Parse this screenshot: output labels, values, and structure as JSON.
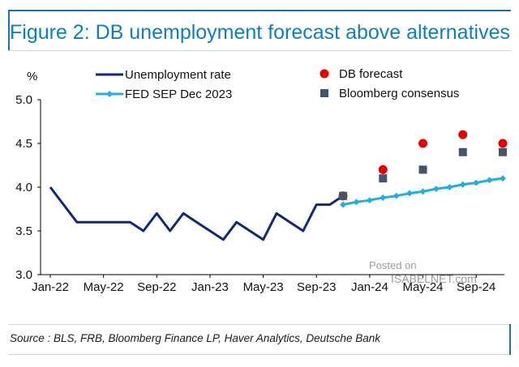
{
  "figure": {
    "title": "Figure 2: DB unemployment forecast above alternatives",
    "source": "Source : BLS, FRB, Bloomberg Finance LP, Haver Analytics, Deutsche Bank"
  },
  "watermark": {
    "line1": "Posted on",
    "line2": "ISABELNET.com"
  },
  "colors": {
    "title": "#0f7fb5",
    "unemployment": "#13277a",
    "fed": "#22aee3",
    "db": "#e60000",
    "bloomberg": "#44546a"
  },
  "chart_data": {
    "type": "line",
    "title": "Figure 2: DB unemployment forecast above alternatives",
    "ylabel": "%",
    "ylim": [
      3.0,
      5.0
    ],
    "yticks": [
      3.0,
      3.5,
      4.0,
      4.5,
      5.0
    ],
    "ytick_labels": [
      "3.0",
      "3.5",
      "4.0",
      "4.5",
      "5.0"
    ],
    "x_start": 0,
    "x_end": 34,
    "xticks": [
      0,
      4,
      8,
      12,
      16,
      20,
      24,
      28,
      32
    ],
    "xtick_labels": [
      "Jan-22",
      "May-22",
      "Sep-22",
      "Jan-23",
      "May-23",
      "Sep-23",
      "Jan-24",
      "May-24",
      "Sep-24"
    ],
    "series": [
      {
        "name": "Unemployment rate",
        "style": "line",
        "x": [
          0,
          1,
          2,
          3,
          4,
          5,
          6,
          7,
          8,
          9,
          10,
          11,
          12,
          13,
          14,
          15,
          16,
          17,
          18,
          19,
          20,
          21,
          22
        ],
        "values": [
          4.0,
          3.8,
          3.6,
          3.6,
          3.6,
          3.6,
          3.6,
          3.5,
          3.7,
          3.5,
          3.7,
          3.6,
          3.5,
          3.4,
          3.6,
          3.5,
          3.4,
          3.7,
          3.6,
          3.5,
          3.8,
          3.8,
          3.9
        ]
      },
      {
        "name": "FED SEP Dec 2023",
        "style": "line-diamond",
        "x": [
          22,
          23,
          24,
          25,
          26,
          27,
          28,
          29,
          30,
          31,
          32,
          33,
          34
        ],
        "values": [
          3.8,
          3.83,
          3.85,
          3.88,
          3.9,
          3.93,
          3.95,
          3.98,
          4.0,
          4.03,
          4.05,
          4.08,
          4.1
        ]
      },
      {
        "name": "DB forecast",
        "style": "dot",
        "x": [
          22,
          25,
          28,
          31,
          34
        ],
        "values": [
          3.9,
          4.2,
          4.5,
          4.6,
          4.5
        ]
      },
      {
        "name": "Bloomberg consensus",
        "style": "square",
        "x": [
          22,
          25,
          28,
          31,
          34
        ],
        "values": [
          3.9,
          4.1,
          4.2,
          4.4,
          4.4
        ]
      }
    ]
  }
}
